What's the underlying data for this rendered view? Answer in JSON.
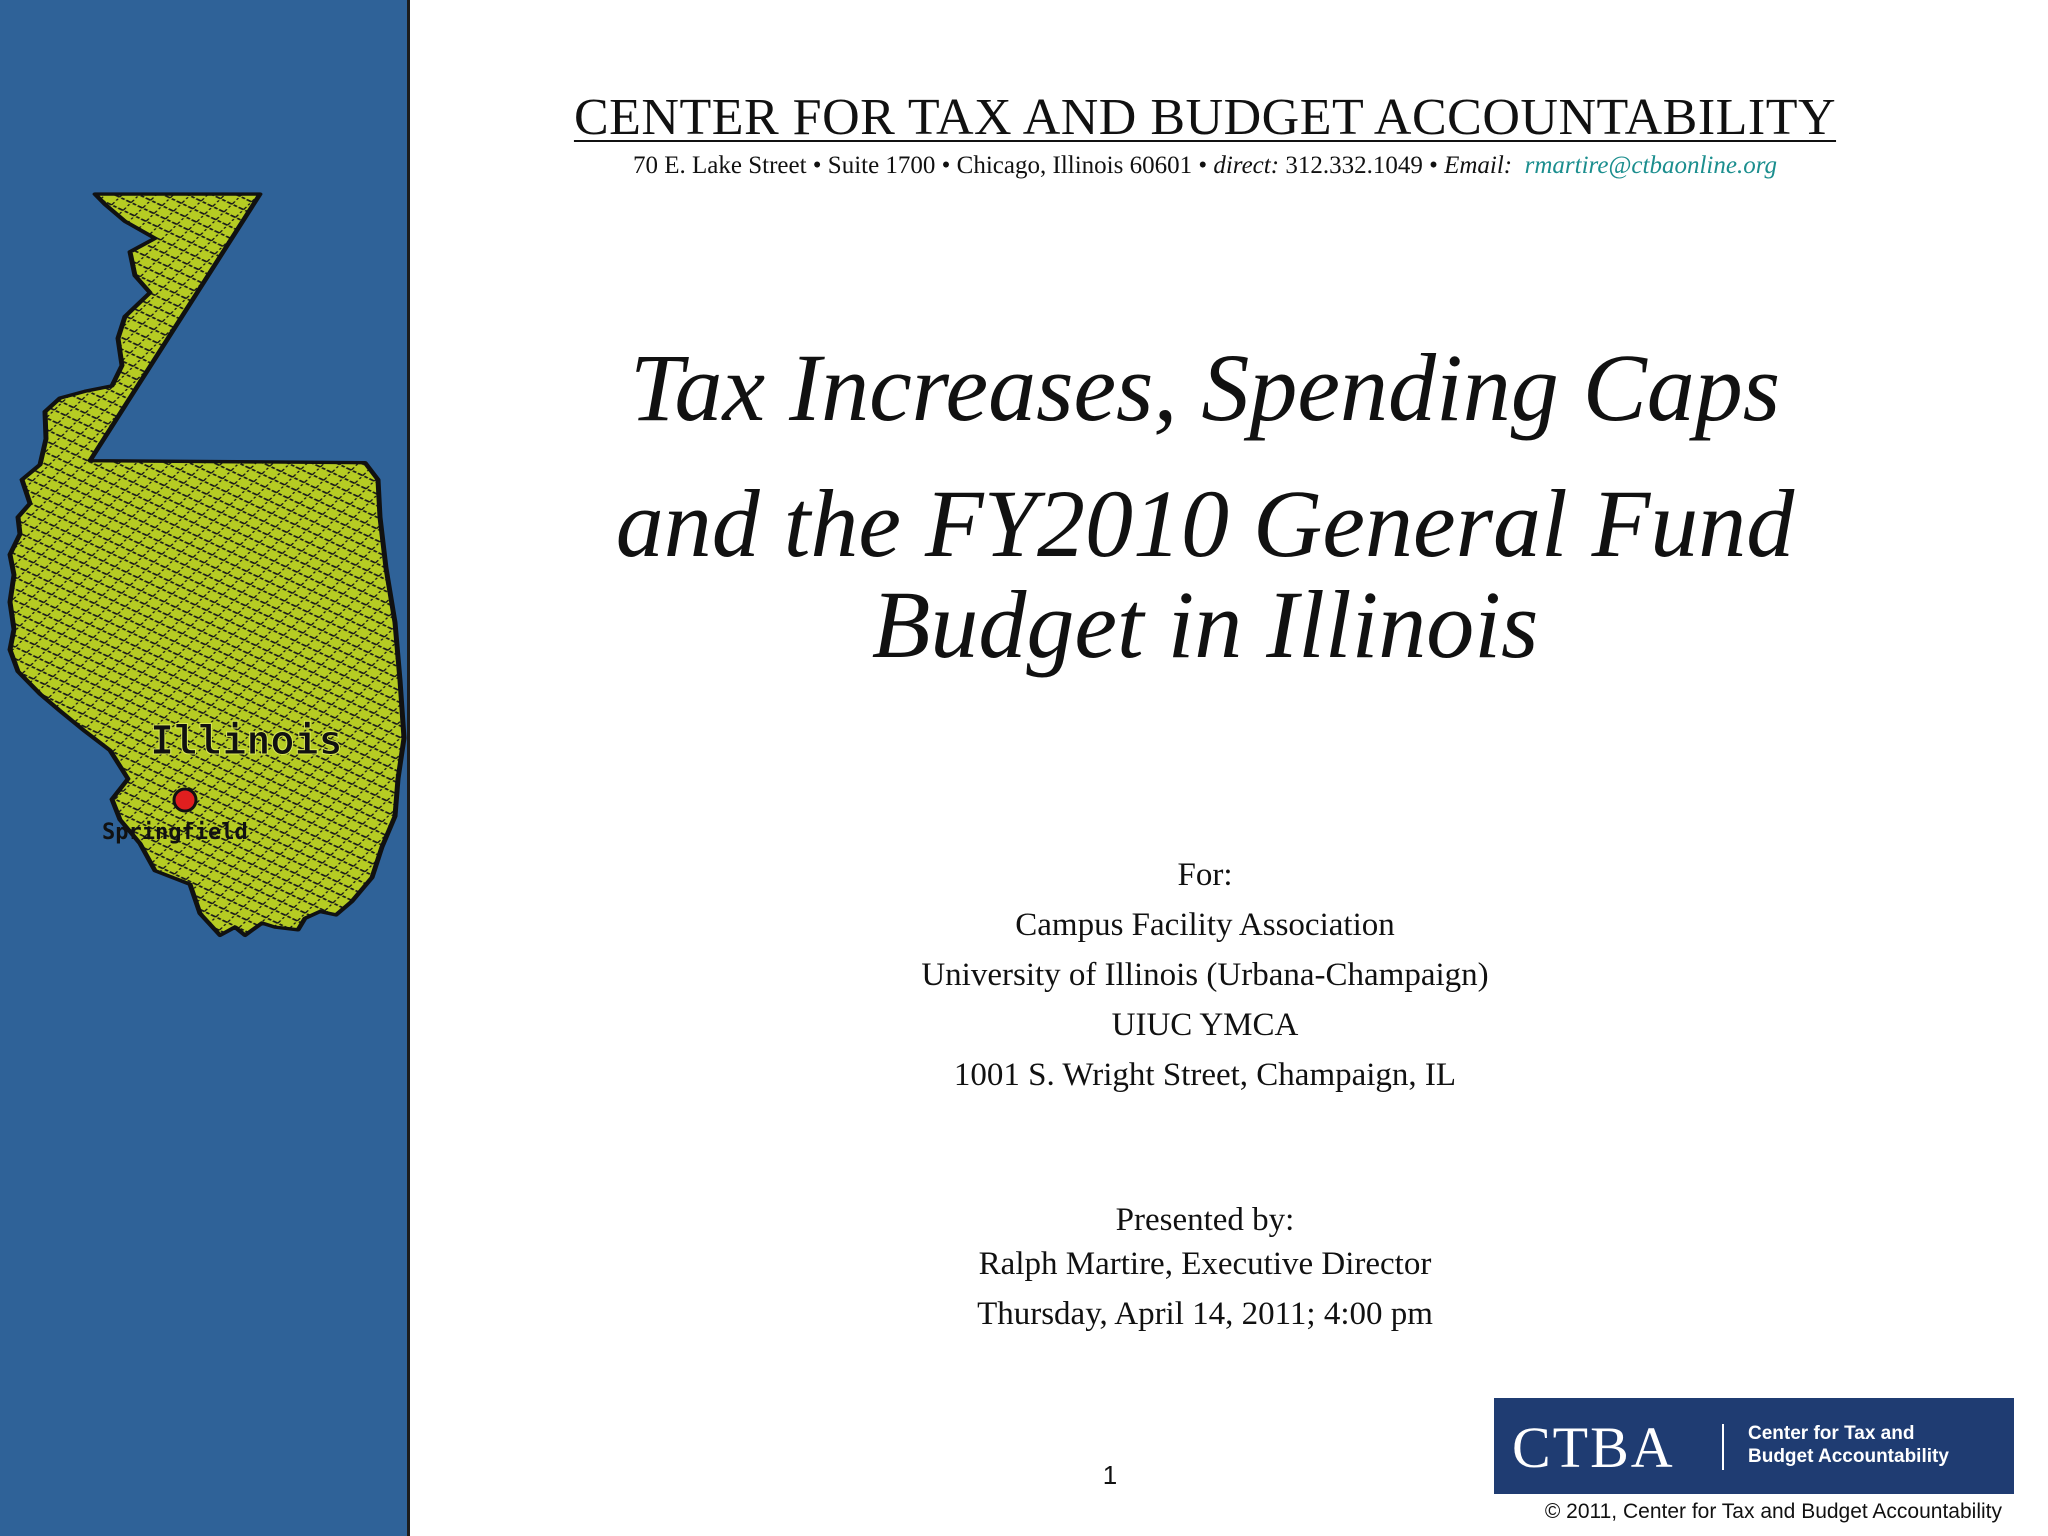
{
  "header": {
    "org_name": "CENTER FOR TAX AND BUDGET ACCOUNTABILITY",
    "addr_part1": "70 E. Lake Street •  Suite 1700 • Chicago, Illinois 60601 • ",
    "direct_label": "direct:",
    "addr_part2": " 312.332.1049 • ",
    "email_label": "Email:",
    "email": "rmartire@ctbaonline.org"
  },
  "title": {
    "line1": "Tax Increases, Spending Caps",
    "line2": "and the FY2010 General Fund",
    "line3": "Budget in Illinois"
  },
  "audience": {
    "label": "For:",
    "lines": [
      "Campus Facility Association",
      "University of Illinois (Urbana-Champaign)",
      "UIUC YMCA",
      "1001 S. Wright Street, Champaign, IL"
    ]
  },
  "presenter": {
    "label": "Presented  by:",
    "name": "Ralph Martire, Executive Director",
    "date": "Thursday, April 14, 2011; 4:00 pm"
  },
  "map": {
    "state_label": "Illinois",
    "city_label": "Springfield",
    "state_fill": "#b6cc23",
    "marker_color": "#e01f1f"
  },
  "colors": {
    "sidebar": "#2f6298",
    "logo_bg": "#1f3c72",
    "email": "#1b8e8e"
  },
  "page_number": "1",
  "logo": {
    "abbr": "CTBA",
    "line1": "Center for Tax and",
    "line2": "Budget Accountability"
  },
  "copyright": "©  2011, Center for Tax and Budget Accountability"
}
